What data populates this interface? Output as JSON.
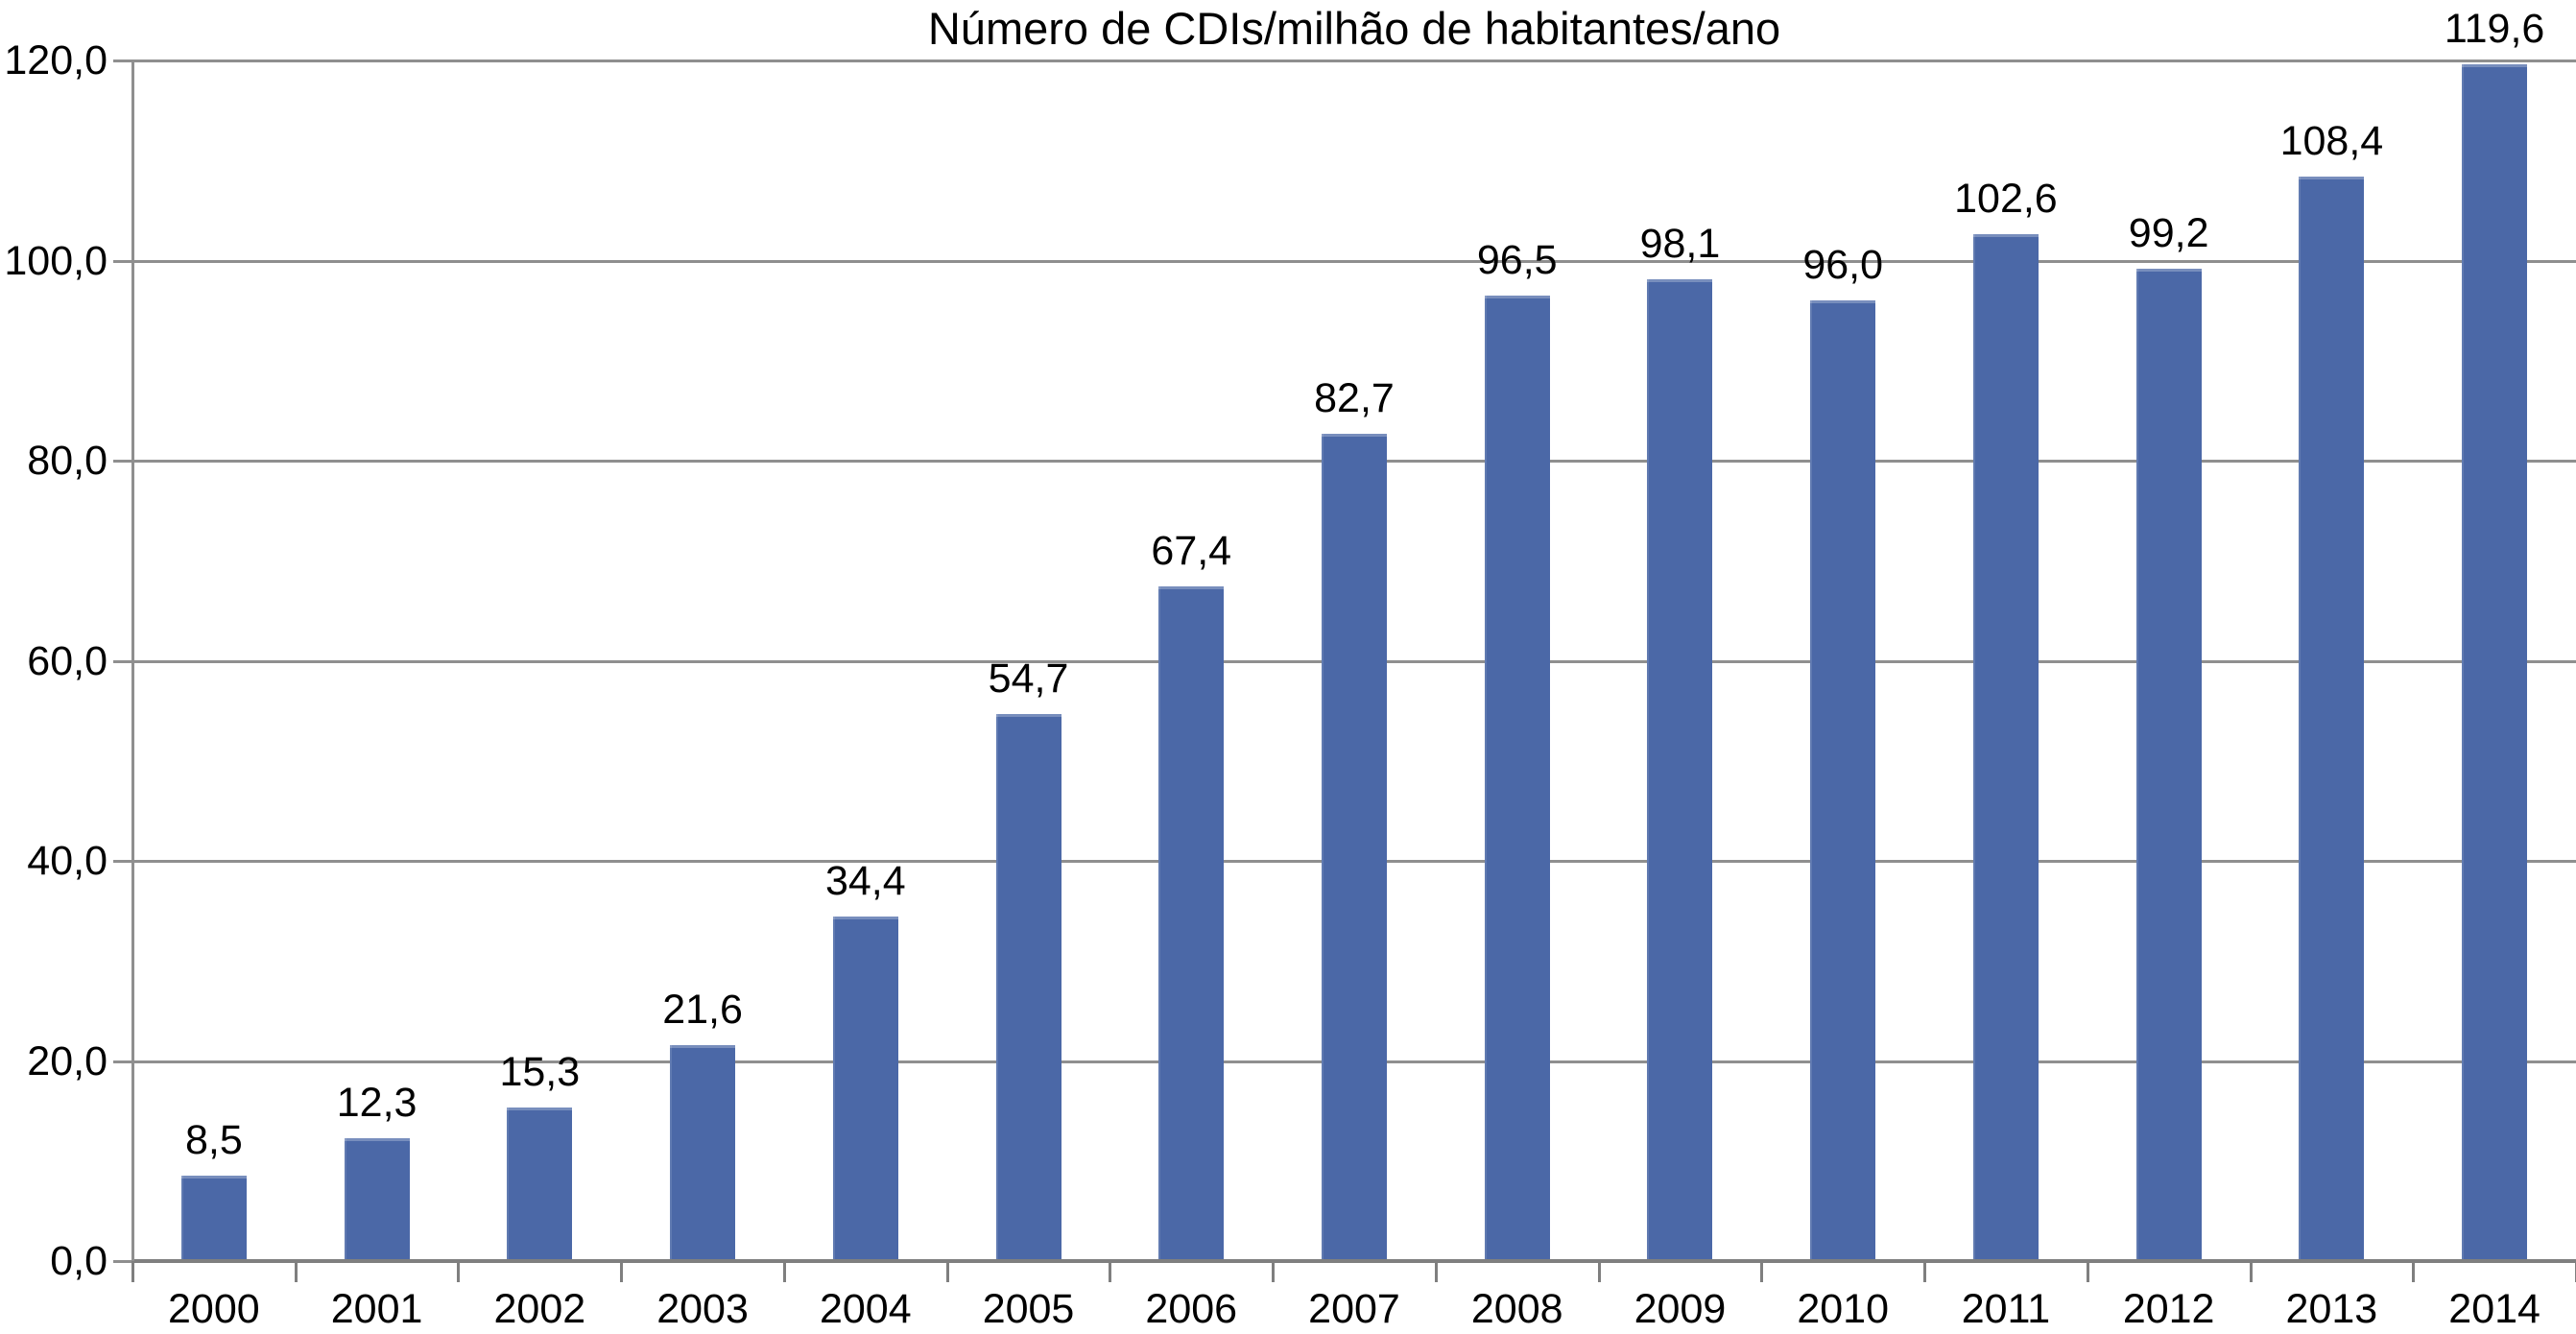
{
  "title": "Número de CDIs/milhão de habitantes/ano",
  "chart_data": {
    "type": "bar",
    "title": "Número de CDIs/milhão de habitantes/ano",
    "categories": [
      "2000",
      "2001",
      "2002",
      "2003",
      "2004",
      "2005",
      "2006",
      "2007",
      "2008",
      "2009",
      "2010",
      "2011",
      "2012",
      "2013",
      "2014"
    ],
    "values": [
      8.5,
      12.3,
      15.3,
      21.6,
      34.4,
      54.7,
      67.4,
      82.7,
      96.5,
      98.1,
      96.0,
      102.6,
      99.2,
      108.4,
      119.6
    ],
    "data_labels": [
      "8,5",
      "12,3",
      "15,3",
      "21,6",
      "34,4",
      "54,7",
      "67,4",
      "82,7",
      "96,5",
      "98,1",
      "96,0",
      "102,6",
      "99,2",
      "108,4",
      "119,6"
    ],
    "xlabel": "",
    "ylabel": "",
    "ylim": [
      0,
      120
    ],
    "ytick_step": 20,
    "ytick_labels": [
      "0,0",
      "20,0",
      "40,0",
      "60,0",
      "80,0",
      "100,0",
      "120,0"
    ],
    "grid": true,
    "legend": "none",
    "colors": {
      "bar": "#4B68A7",
      "gridline": "#8F8F8F",
      "x_axis": "#7F7F7F",
      "y_axis": "#8F8F8F",
      "text": "#000000",
      "background": "#FFFFFF"
    }
  }
}
